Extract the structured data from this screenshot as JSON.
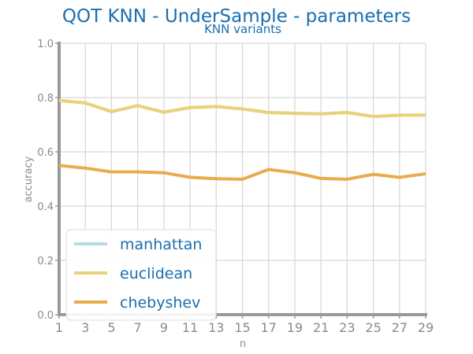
{
  "chart_data": {
    "type": "line",
    "title": "QOT KNN - UnderSample - parameters",
    "subtitle": "KNN variants",
    "xlabel": "n",
    "ylabel": "accuracy",
    "x": [
      1,
      3,
      5,
      7,
      9,
      11,
      13,
      15,
      17,
      19,
      21,
      23,
      25,
      27,
      29
    ],
    "xlim": [
      1,
      29
    ],
    "ylim": [
      0,
      1
    ],
    "yticks": [
      "0.0",
      "0.2",
      "0.4",
      "0.6",
      "0.8",
      "1.0"
    ],
    "grid": true,
    "legend_position": "lower-left",
    "series": [
      {
        "name": "manhattan",
        "color": "#b3dbe6",
        "values": [
          0.789,
          0.78,
          0.748,
          0.77,
          0.746,
          0.763,
          0.767,
          0.758,
          0.745,
          0.742,
          0.74,
          0.745,
          0.73,
          0.735,
          0.735
        ]
      },
      {
        "name": "euclidean",
        "color": "#e9d27a",
        "values": [
          0.789,
          0.78,
          0.748,
          0.77,
          0.746,
          0.763,
          0.767,
          0.758,
          0.745,
          0.742,
          0.74,
          0.745,
          0.73,
          0.735,
          0.735
        ]
      },
      {
        "name": "chebyshev",
        "color": "#e8ac4e",
        "values": [
          0.55,
          0.54,
          0.526,
          0.526,
          0.523,
          0.506,
          0.501,
          0.499,
          0.535,
          0.523,
          0.502,
          0.499,
          0.517,
          0.506,
          0.519
        ]
      }
    ]
  }
}
